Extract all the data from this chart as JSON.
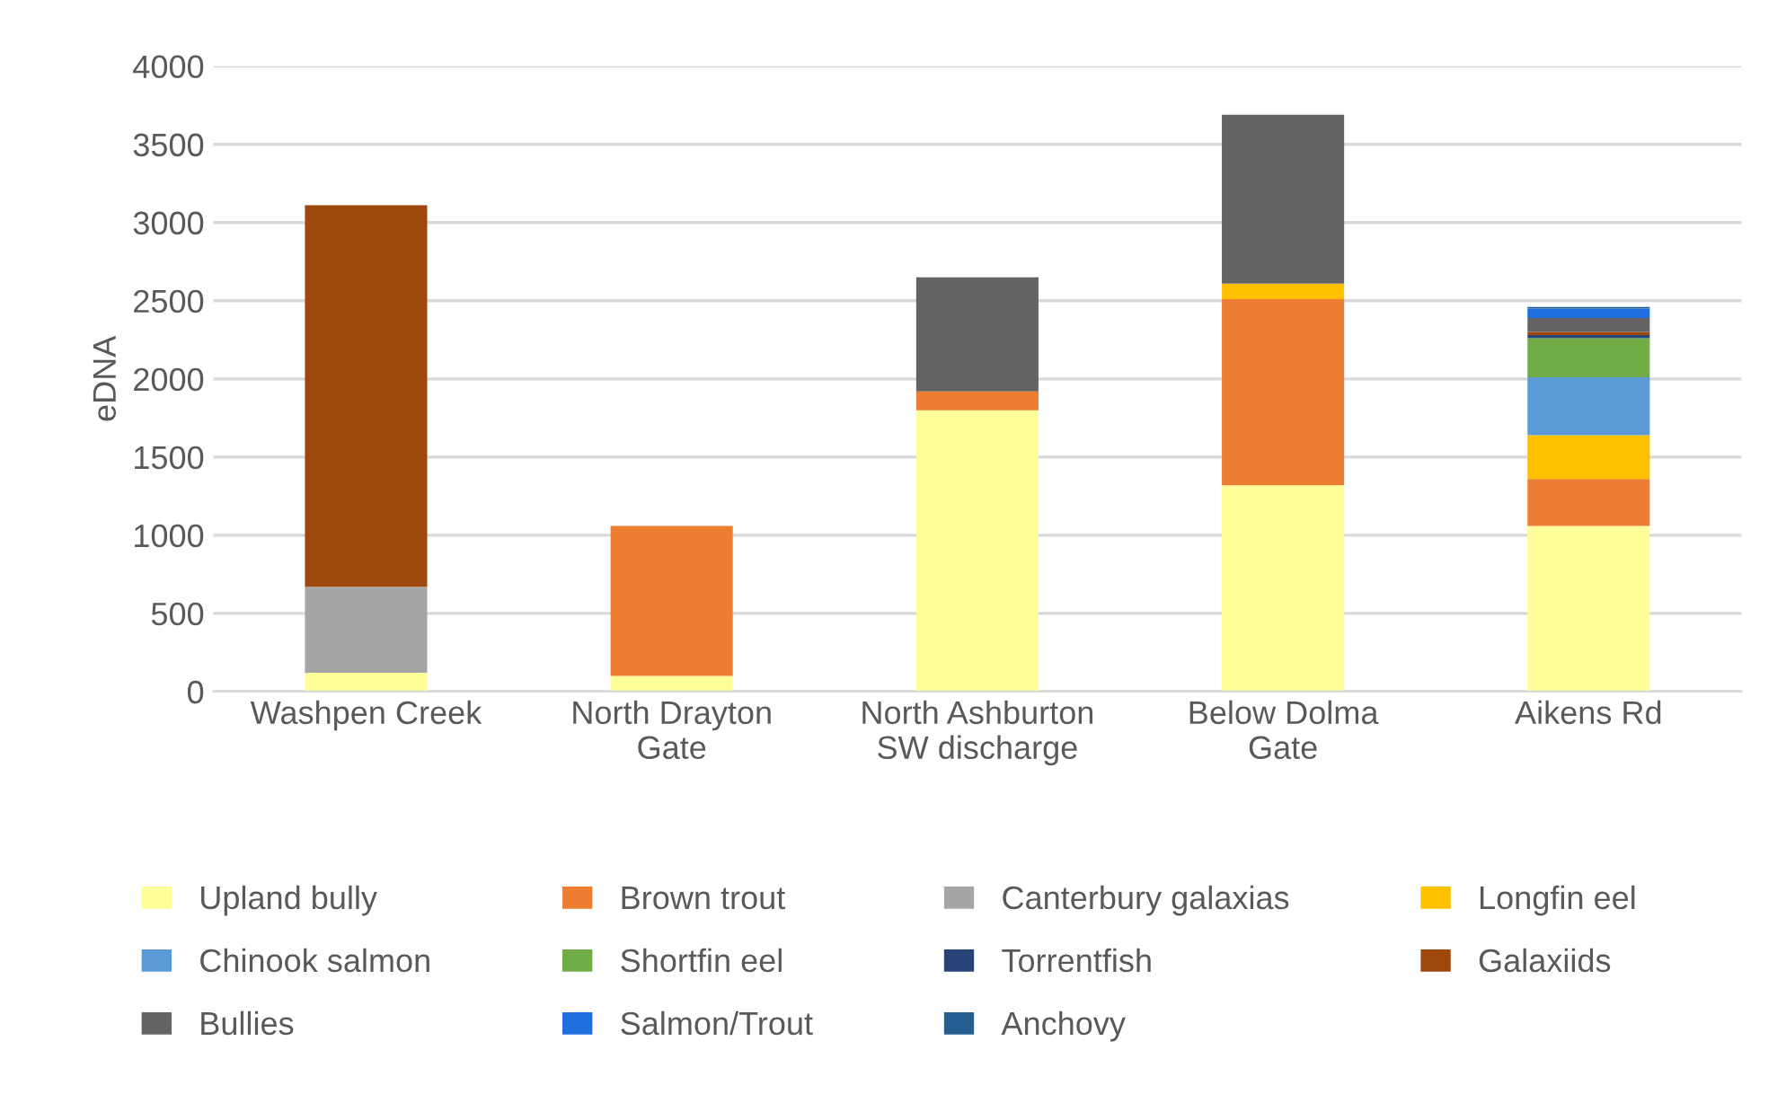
{
  "chart_data": {
    "type": "bar",
    "stacked": true,
    "ylabel": "eDNA",
    "categories": [
      "Washpen Creek",
      "North Drayton\nGate",
      "North Ashburton\nSW discharge",
      "Below Dolma\nGate",
      "Aikens Rd"
    ],
    "series": [
      {
        "name": "Upland bully",
        "color": "#ffff99",
        "values": [
          120,
          100,
          1800,
          1320,
          1060
        ]
      },
      {
        "name": "Brown trout",
        "color": "#ed7d31",
        "values": [
          null,
          960,
          120,
          1190,
          300
        ]
      },
      {
        "name": "Canterbury galaxias",
        "color": "#a5a5a5",
        "values": [
          550,
          null,
          null,
          null,
          null
        ]
      },
      {
        "name": "Longfin eel",
        "color": "#ffc000",
        "values": [
          null,
          null,
          null,
          100,
          280
        ]
      },
      {
        "name": "Chinook salmon",
        "color": "#5b9bd5",
        "values": [
          null,
          null,
          null,
          null,
          370
        ]
      },
      {
        "name": "Shortfin eel",
        "color": "#70ad47",
        "values": [
          null,
          null,
          null,
          null,
          250
        ]
      },
      {
        "name": "Torrentfish",
        "color": "#264478",
        "values": [
          null,
          null,
          null,
          null,
          20
        ]
      },
      {
        "name": "Galaxiids",
        "color": "#9e480e",
        "values": [
          2440,
          null,
          null,
          null,
          20
        ]
      },
      {
        "name": "Bullies",
        "color": "#636363",
        "values": [
          null,
          null,
          730,
          1080,
          90
        ]
      },
      {
        "name": "Salmon/Trout",
        "color": "#1f6fe0",
        "values": [
          null,
          null,
          null,
          null,
          60
        ]
      },
      {
        "name": "Anchovy",
        "color": "#255e91",
        "values": [
          null,
          null,
          null,
          null,
          10
        ]
      }
    ],
    "ylim": [
      0,
      4000
    ],
    "yticks": [
      0,
      500,
      1000,
      1500,
      2000,
      2500,
      3000,
      3500,
      4000
    ],
    "grid": "y",
    "legend": "bottom"
  }
}
